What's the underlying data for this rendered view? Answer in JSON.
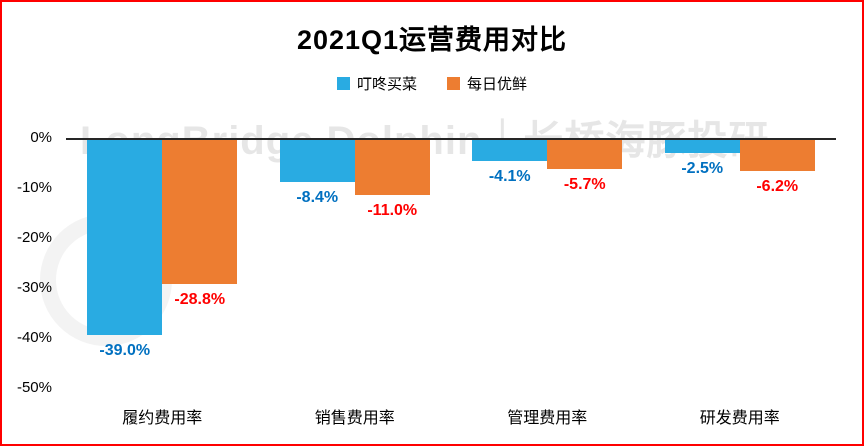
{
  "title": "2021Q1运营费用对比",
  "watermark": "LongBridge Dolphin｜长桥海豚投研",
  "frame_border_color": "#FF0000",
  "chart_data": {
    "type": "bar",
    "title": "2021Q1运营费用对比",
    "categories": [
      "履约费用率",
      "销售费用率",
      "管理费用率",
      "研发费用率"
    ],
    "series": [
      {
        "name": "叮咚买菜",
        "color": "#29ABE2",
        "label_color": "#0070C0",
        "values": [
          -39.0,
          -8.4,
          -4.1,
          -2.5
        ],
        "labels": [
          "-39.0%",
          "-8.4%",
          "-4.1%",
          "-2.5%"
        ]
      },
      {
        "name": "每日优鲜",
        "color": "#ED7D31",
        "label_color": "#FF0000",
        "values": [
          -28.8,
          -11.0,
          -5.7,
          -6.2
        ],
        "labels": [
          "-28.8%",
          "-11.0%",
          "-5.7%",
          "-6.2%"
        ]
      }
    ],
    "y_axis": {
      "ticks": [
        "0%",
        "-10%",
        "-20%",
        "-30%",
        "-40%",
        "-50%"
      ],
      "min": -50,
      "max": 0
    },
    "grid": false,
    "legend_position": "top",
    "xlabel": "",
    "ylabel": ""
  }
}
